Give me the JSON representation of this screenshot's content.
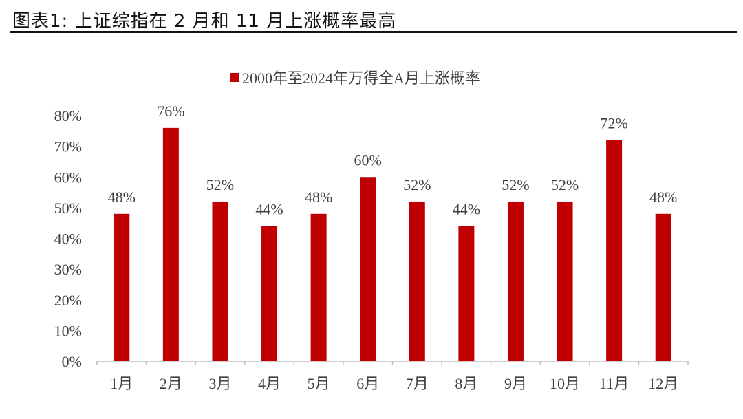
{
  "figure_title": "图表1: 上证综指在 2 月和 11 月上涨概率最高",
  "colors": {
    "bar": "#c00000",
    "axis": "#bfbfbf",
    "text": "#404040",
    "title_rule": "#111111"
  },
  "chart_data": {
    "type": "bar",
    "legend_position": "top",
    "categories": [
      "1月",
      "2月",
      "3月",
      "4月",
      "5月",
      "6月",
      "7月",
      "8月",
      "9月",
      "10月",
      "11月",
      "12月"
    ],
    "series": [
      {
        "name": "2000年至2024年万得全A月上涨概率",
        "values": [
          48,
          76,
          52,
          44,
          48,
          60,
          52,
          44,
          52,
          52,
          72,
          48
        ]
      }
    ],
    "data_labels": [
      "48%",
      "76%",
      "52%",
      "44%",
      "48%",
      "60%",
      "52%",
      "44%",
      "52%",
      "52%",
      "72%",
      "48%"
    ],
    "y_ticks": [
      "0%",
      "10%",
      "20%",
      "30%",
      "40%",
      "50%",
      "60%",
      "70%",
      "80%"
    ],
    "ylim": [
      0,
      80
    ],
    "grid": false,
    "title": "",
    "xlabel": "",
    "ylabel": ""
  }
}
